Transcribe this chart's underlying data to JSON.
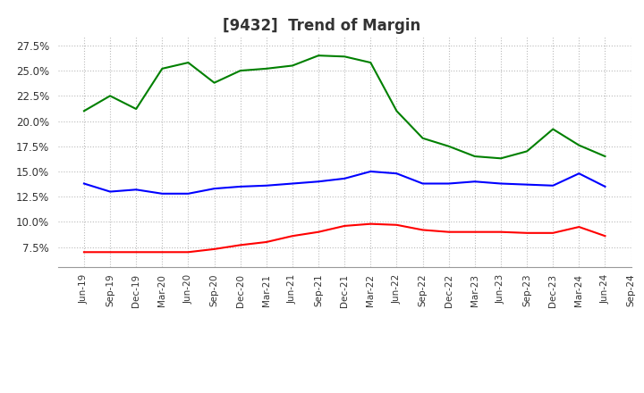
{
  "title": "[9432]  Trend of Margin",
  "x_labels": [
    "Jun-19",
    "Sep-19",
    "Dec-19",
    "Mar-20",
    "Jun-20",
    "Sep-20",
    "Dec-20",
    "Mar-21",
    "Jun-21",
    "Sep-21",
    "Dec-21",
    "Mar-22",
    "Jun-22",
    "Sep-22",
    "Dec-22",
    "Mar-23",
    "Jun-23",
    "Sep-23",
    "Dec-23",
    "Mar-24",
    "Jun-24",
    "Sep-24"
  ],
  "ordinary_income": [
    0.138,
    0.13,
    0.132,
    0.128,
    0.128,
    0.133,
    0.135,
    0.136,
    0.138,
    0.14,
    0.143,
    0.15,
    0.148,
    0.138,
    0.138,
    0.14,
    0.138,
    0.137,
    0.136,
    0.148,
    0.135,
    null
  ],
  "net_income": [
    0.07,
    0.07,
    0.07,
    0.07,
    0.07,
    0.073,
    0.077,
    0.08,
    0.086,
    0.09,
    0.096,
    0.098,
    0.097,
    0.092,
    0.09,
    0.09,
    0.09,
    0.089,
    0.089,
    0.095,
    0.086,
    null
  ],
  "operating_cashflow": [
    0.21,
    0.225,
    0.212,
    0.252,
    0.258,
    0.238,
    0.25,
    0.252,
    0.255,
    0.265,
    0.264,
    0.258,
    0.21,
    0.183,
    0.175,
    0.165,
    0.163,
    0.17,
    0.192,
    0.176,
    0.165,
    null
  ],
  "ylim": [
    0.055,
    0.285
  ],
  "yticks": [
    0.075,
    0.1,
    0.125,
    0.15,
    0.175,
    0.2,
    0.225,
    0.25,
    0.275
  ],
  "blue_color": "#0000FF",
  "red_color": "#FF0000",
  "green_color": "#008000",
  "bg_color": "#FFFFFF",
  "plot_bg_color": "#FFFFFF",
  "grid_color": "#BBBBBB",
  "title_fontsize": 12,
  "title_color": "#333333"
}
